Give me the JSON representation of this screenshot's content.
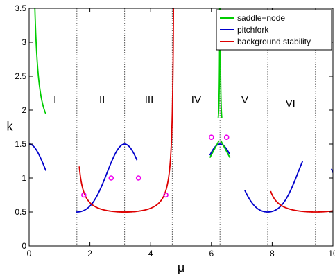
{
  "chart_data": {
    "type": "line",
    "xlabel": "μ",
    "ylabel": "k",
    "xlim": [
      0,
      10
    ],
    "ylim": [
      0,
      3.5
    ],
    "xticks": [
      "0",
      "2",
      "4",
      "6",
      "8",
      "10"
    ],
    "yticks": [
      "0",
      "0.5",
      "1",
      "1.5",
      "2",
      "2.5",
      "3",
      "3.5"
    ],
    "grid": false,
    "legend_position": "top-right",
    "series": [
      {
        "name": "saddle−node",
        "color": "#00cc00"
      },
      {
        "name": "pitchfork",
        "color": "#0000cc"
      },
      {
        "name": "background stability",
        "color": "#dd0000"
      }
    ],
    "region_labels": [
      {
        "label": "I",
        "x": 0.85,
        "y": 2.1
      },
      {
        "label": "II",
        "x": 2.4,
        "y": 2.1
      },
      {
        "label": "III",
        "x": 3.95,
        "y": 2.1
      },
      {
        "label": "IV",
        "x": 5.5,
        "y": 2.1
      },
      {
        "label": "V",
        "x": 7.1,
        "y": 2.1
      },
      {
        "label": "VI",
        "x": 8.6,
        "y": 2.05
      }
    ],
    "vertical_dotted_lines_x": [
      1.571,
      3.142,
      4.712,
      6.283,
      7.854,
      9.425
    ],
    "markers": [
      {
        "x": 1.8,
        "y": 0.75
      },
      {
        "x": 2.7,
        "y": 1.0
      },
      {
        "x": 3.6,
        "y": 1.0
      },
      {
        "x": 4.5,
        "y": 0.75
      },
      {
        "x": 6.0,
        "y": 1.6
      },
      {
        "x": 6.5,
        "y": 1.6
      }
    ],
    "marker_color": "#ee00ee"
  }
}
